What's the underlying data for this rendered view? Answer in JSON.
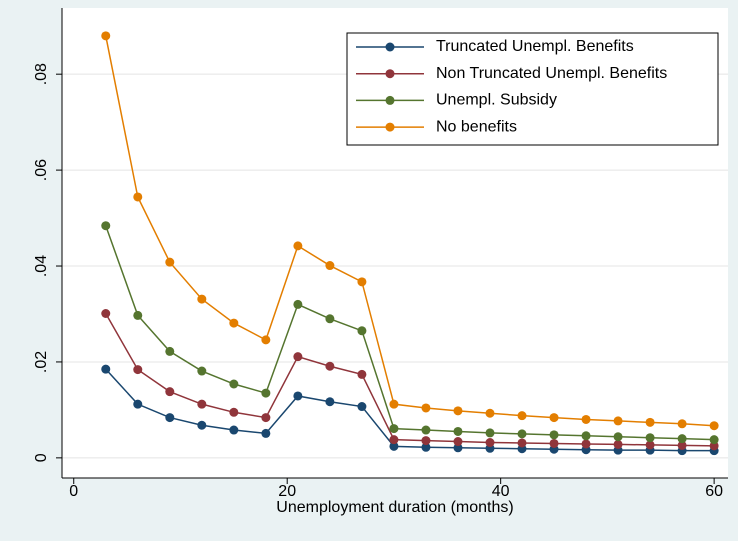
{
  "chart_data": {
    "type": "line",
    "xlabel": "Unemployment duration (months)",
    "x": [
      3,
      6,
      9,
      12,
      15,
      18,
      21,
      24,
      27,
      30,
      33,
      36,
      39,
      42,
      45,
      48,
      51,
      54,
      57,
      60
    ],
    "series": [
      {
        "name": "Truncated Unempl. Benefits",
        "color": "#1a476f",
        "values": [
          0.0185,
          0.0112,
          0.0084,
          0.0068,
          0.0058,
          0.0051,
          0.0129,
          0.0117,
          0.0107,
          0.0024,
          0.0022,
          0.0021,
          0.002,
          0.0019,
          0.0018,
          0.0017,
          0.0016,
          0.0016,
          0.0015,
          0.0015
        ]
      },
      {
        "name": "Non Truncated Unempl. Benefits",
        "color": "#90353b",
        "values": [
          0.0301,
          0.0184,
          0.0138,
          0.0112,
          0.0095,
          0.0084,
          0.0211,
          0.0191,
          0.0174,
          0.0038,
          0.0036,
          0.0034,
          0.0032,
          0.0031,
          0.003,
          0.0029,
          0.0028,
          0.0027,
          0.0026,
          0.0025
        ]
      },
      {
        "name": "Unempl. Subsidy",
        "color": "#55752f",
        "values": [
          0.0484,
          0.0297,
          0.0222,
          0.0181,
          0.0154,
          0.0135,
          0.032,
          0.029,
          0.0265,
          0.0061,
          0.0058,
          0.0055,
          0.0052,
          0.005,
          0.0048,
          0.0046,
          0.0044,
          0.0042,
          0.004,
          0.0038
        ]
      },
      {
        "name": "No benefits",
        "color": "#e37e00",
        "values": [
          0.088,
          0.0544,
          0.0408,
          0.0331,
          0.0281,
          0.0246,
          0.0442,
          0.0401,
          0.0367,
          0.0112,
          0.0104,
          0.0098,
          0.0093,
          0.0088,
          0.0084,
          0.008,
          0.0077,
          0.0074,
          0.0071,
          0.0067
        ]
      }
    ],
    "xlim": [
      -1.1,
      61.3
    ],
    "xticks": [
      0,
      20,
      40,
      60
    ],
    "ylim": [
      -0.0042,
      0.0938
    ],
    "yticks": [
      0,
      {
        "value": 0.02,
        "label": ".02"
      },
      {
        "value": 0.04,
        "label": ".04"
      },
      {
        "value": 0.06,
        "label": ".06"
      },
      {
        "value": 0.08,
        "label": ".08"
      }
    ],
    "grid": true,
    "legend": "top-right"
  }
}
